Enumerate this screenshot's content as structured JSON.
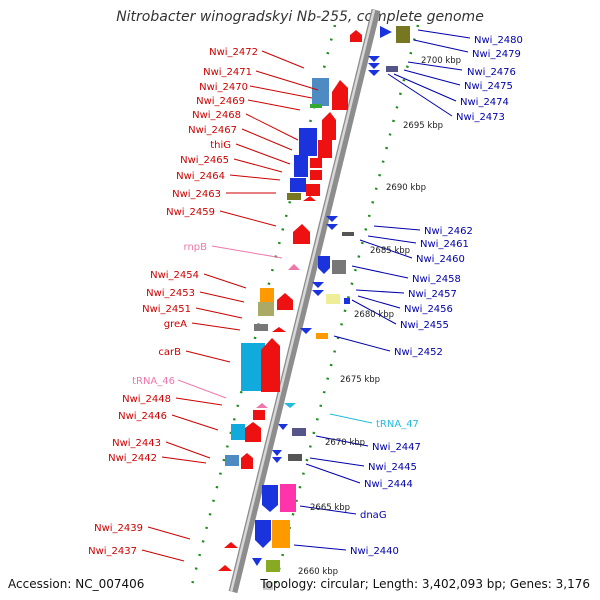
{
  "title": "Nitrobacter winogradskyi Nb-255, complete genome",
  "footer": {
    "accession": "Accession: NC_007406",
    "summary": "Topology: circular; Length: 3,402,093 bp; Genes: 3,176"
  },
  "colors": {
    "forward_label": "#cc0000",
    "reverse_label": "#0000aa",
    "rna_forward": "#ee77aa",
    "rna_reverse": "#22bbdd",
    "backbone": "#888888",
    "tick": "#228b22"
  },
  "scale_marks": [
    "2700 kbp",
    "2695 kbp",
    "2690 kbp",
    "2685 kbp",
    "2680 kbp",
    "2675 kbp",
    "2670 kbp",
    "2665 kbp",
    "2660 kbp"
  ],
  "left_labels": [
    "Nwi_2472",
    "Nwi_2471",
    "Nwi_2470",
    "Nwi_2469",
    "Nwi_2468",
    "Nwi_2467",
    "thiG",
    "Nwi_2465",
    "Nwi_2464",
    "Nwi_2463",
    "Nwi_2459",
    "rnpB",
    "Nwi_2454",
    "Nwi_2453",
    "Nwi_2451",
    "greA",
    "carB",
    "tRNA_46",
    "Nwi_2448",
    "Nwi_2446",
    "Nwi_2443",
    "Nwi_2442",
    "Nwi_2439",
    "Nwi_2437"
  ],
  "right_labels": [
    "Nwi_2480",
    "Nwi_2479",
    "Nwi_2476",
    "Nwi_2475",
    "Nwi_2474",
    "Nwi_2473",
    "Nwi_2462",
    "Nwi_2461",
    "Nwi_2460",
    "Nwi_2458",
    "Nwi_2457",
    "Nwi_2456",
    "Nwi_2455",
    "Nwi_2452",
    "tRNA_47",
    "Nwi_2447",
    "Nwi_2445",
    "Nwi_2444",
    "dnaG",
    "Nwi_2440"
  ]
}
